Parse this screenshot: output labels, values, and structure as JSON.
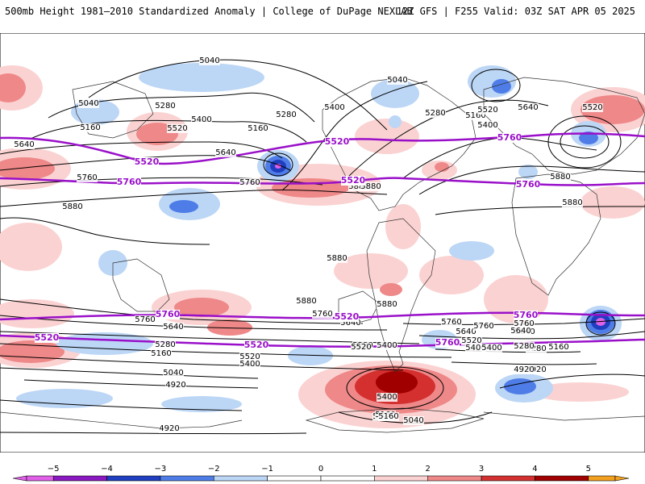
{
  "header": {
    "title": "500mb Height 1981–2010 Standardized Anomaly | College of DuPage NEXLAB",
    "run_info": "12Z GFS | F255 Valid: 03Z SAT APR 05 2025"
  },
  "colors": {
    "neg5": "#e060e8",
    "neg4": "#8a18c0",
    "neg3": "#1f3fc0",
    "neg2": "#4f7de8",
    "neg1": "#bcd6f6",
    "zero": "#ffffff",
    "pos1": "#fbd2d2",
    "pos2": "#ef8888",
    "pos3": "#d43030",
    "pos4": "#a00000",
    "pos5": "#f2a020",
    "reference_contour": "#9a10c9",
    "height_contour": "#000000"
  },
  "contour_labels": {
    "black": [
      "5040",
      "5040",
      "5160",
      "5280",
      "5400",
      "5160",
      "5280",
      "5520",
      "5040",
      "5400",
      "5280",
      "5160",
      "5400",
      "5520",
      "5640",
      "5520",
      "5640",
      "5640",
      "5760",
      "5760",
      "5880",
      "5880",
      "5880",
      "5880",
      "5880",
      "5880",
      "5760",
      "5640",
      "5520",
      "5400",
      "5280",
      "5160",
      "5040",
      "4920",
      "4920",
      "5880",
      "5760",
      "5640",
      "5520",
      "5400",
      "5160",
      "5280",
      "5400",
      "5040",
      "4920",
      "5160",
      "5280",
      "5520",
      "5640",
      "5760",
      "5400",
      "5280",
      "4920",
      "5040",
      "5160",
      "5400",
      "5760",
      "5640",
      "5880",
      "5640",
      "5760"
    ],
    "purple": [
      "5520",
      "5760",
      "5520",
      "5760",
      "5520",
      "5760",
      "5520",
      "5760",
      "5520",
      "5760",
      "5520",
      "5760"
    ]
  },
  "colorbar": {
    "ticks": [
      "−5",
      "−4",
      "−3",
      "−2",
      "−1",
      "0",
      "1",
      "2",
      "3",
      "4",
      "5"
    ]
  }
}
